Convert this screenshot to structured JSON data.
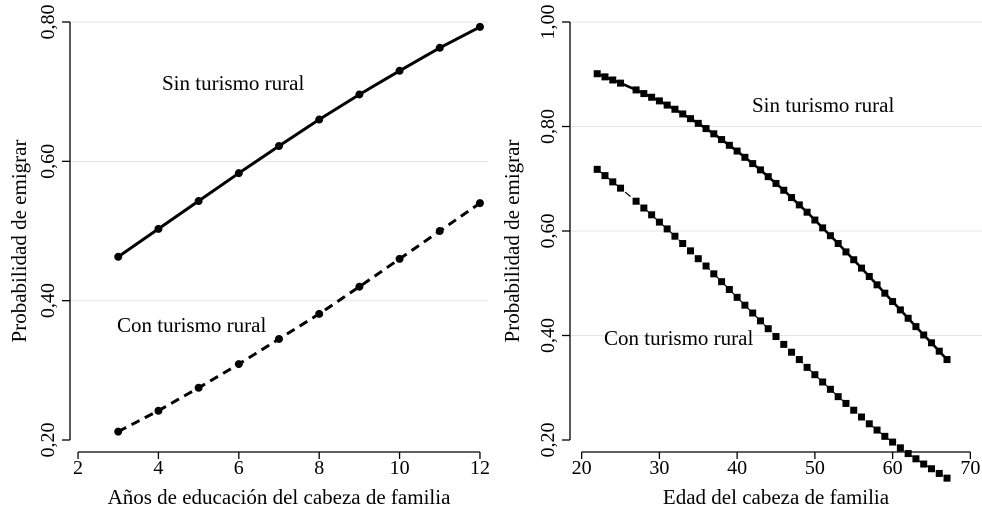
{
  "chart_data": [
    {
      "type": "line",
      "xlabel": "Años de educación del cabeza de familia",
      "ylabel": "Probabilidad de emigrar",
      "xlim": [
        1.8,
        12.2
      ],
      "ylim": [
        0.2,
        0.8
      ],
      "xticks": [
        2,
        4,
        6,
        8,
        10,
        12
      ],
      "yticks": [
        0.2,
        0.4,
        0.6,
        0.8
      ],
      "ytick_labels": [
        "0,20",
        "0,40",
        "0,60",
        "0,80"
      ],
      "grid": "horizontal",
      "marker": "circle",
      "series": [
        {
          "name": "Sin turismo rural",
          "style": "solid",
          "x": [
            3,
            4,
            5,
            6,
            7,
            8,
            9,
            10,
            11,
            12
          ],
          "values": [
            0.463,
            0.503,
            0.543,
            0.583,
            0.622,
            0.66,
            0.696,
            0.73,
            0.763,
            0.793
          ]
        },
        {
          "name": "Con turismo rural",
          "style": "dashed",
          "x": [
            3,
            4,
            5,
            6,
            7,
            8,
            9,
            10,
            11,
            12
          ],
          "values": [
            0.212,
            0.242,
            0.275,
            0.309,
            0.345,
            0.381,
            0.42,
            0.46,
            0.5,
            0.54
          ]
        }
      ],
      "annotations": [
        {
          "text": "Sin turismo rural",
          "series": 0
        },
        {
          "text": "Con turismo rural",
          "series": 1
        }
      ]
    },
    {
      "type": "line",
      "xlabel": "Edad del cabeza de familia",
      "ylabel": "Probabilidad de emigrar",
      "xlim": [
        18.5,
        71.5
      ],
      "ylim": [
        0.2,
        1.0
      ],
      "xticks": [
        20,
        30,
        40,
        50,
        60,
        70
      ],
      "yticks": [
        0.2,
        0.4,
        0.6,
        0.8,
        1.0
      ],
      "ytick_labels": [
        "0,20",
        "0,40",
        "0,60",
        "0,80",
        "1,00"
      ],
      "grid": "horizontal",
      "marker": "square",
      "series": [
        {
          "name": "Sin turismo rural",
          "style": "solid",
          "x": [
            22,
            23,
            24,
            25,
            27,
            28,
            29,
            30,
            31,
            32,
            33,
            34,
            35,
            36,
            37,
            38,
            39,
            40,
            41,
            42,
            43,
            44,
            45,
            46,
            47,
            48,
            49,
            50,
            51,
            52,
            53,
            54,
            55,
            56,
            57,
            58,
            59,
            60,
            61,
            62,
            63,
            64,
            65,
            66,
            67
          ],
          "values": [
            0.901,
            0.895,
            0.889,
            0.883,
            0.87,
            0.863,
            0.856,
            0.849,
            0.841,
            0.833,
            0.824,
            0.815,
            0.806,
            0.796,
            0.786,
            0.775,
            0.764,
            0.753,
            0.741,
            0.729,
            0.717,
            0.704,
            0.691,
            0.678,
            0.664,
            0.65,
            0.636,
            0.621,
            0.606,
            0.591,
            0.576,
            0.56,
            0.545,
            0.529,
            0.513,
            0.497,
            0.481,
            0.465,
            0.449,
            0.433,
            0.417,
            0.401,
            0.386,
            0.37,
            0.354
          ]
        },
        {
          "name": "Con turismo rural",
          "style": "dashed",
          "x": [
            22,
            23,
            24,
            25,
            27,
            28,
            29,
            30,
            31,
            32,
            33,
            34,
            35,
            36,
            37,
            38,
            39,
            40,
            41,
            42,
            43,
            44,
            45,
            46,
            47,
            48,
            49,
            50,
            51,
            52,
            53,
            54,
            55,
            56,
            57,
            58,
            59,
            60,
            61,
            62,
            63,
            64,
            65,
            66,
            67
          ],
          "values": [
            0.718,
            0.706,
            0.694,
            0.682,
            0.657,
            0.644,
            0.631,
            0.617,
            0.604,
            0.59,
            0.576,
            0.562,
            0.547,
            0.533,
            0.518,
            0.503,
            0.488,
            0.473,
            0.458,
            0.443,
            0.428,
            0.413,
            0.398,
            0.383,
            0.368,
            0.354,
            0.339,
            0.325,
            0.311,
            0.297,
            0.283,
            0.27,
            0.257,
            0.244,
            0.231,
            0.219,
            0.207,
            0.196,
            0.185,
            0.174,
            0.164,
            0.154,
            0.145,
            0.136,
            0.127
          ]
        }
      ],
      "annotations": [
        {
          "text": "Sin turismo rural",
          "series": 0
        },
        {
          "text": "Con turismo rural",
          "series": 1
        }
      ]
    }
  ]
}
